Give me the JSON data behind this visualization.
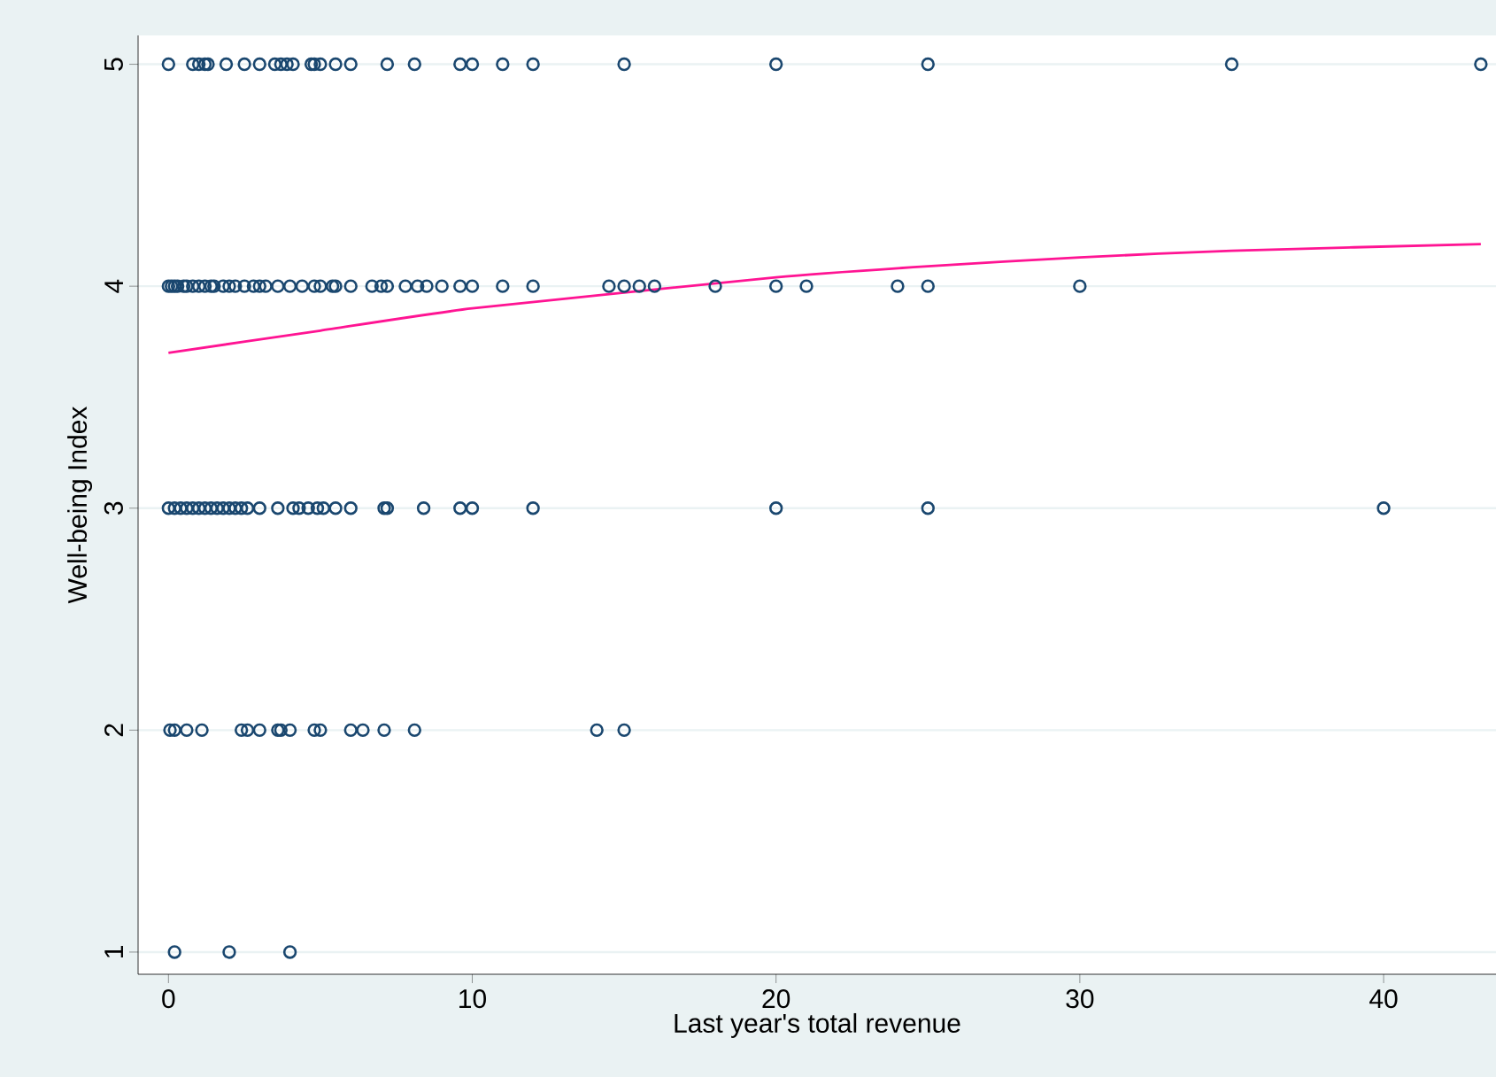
{
  "chart_data": {
    "type": "scatter",
    "xlabel": "Last year's total revenue",
    "ylabel": "Well-being Index",
    "xlim": [
      -1,
      43.7
    ],
    "ylim": [
      0.9,
      5.13
    ],
    "xticks": [
      0,
      10,
      20,
      30,
      40
    ],
    "yticks": [
      1,
      2,
      3,
      4,
      5
    ],
    "grid": "y",
    "marker": "circle",
    "series": [
      {
        "type": "scatter",
        "color": "#1a476f",
        "x": [
          0,
          0.8,
          1,
          1.2,
          1.3,
          1.9,
          2.5,
          3,
          3.5,
          3.7,
          3.9,
          4.1,
          4.7,
          4.8,
          5,
          5.5,
          6,
          7.2,
          8.1,
          9.6,
          10,
          11,
          12,
          15,
          20,
          25,
          35,
          43.2,
          0,
          0.1,
          0.2,
          0.3,
          0.5,
          0.6,
          0.8,
          1,
          1.2,
          1.4,
          1.5,
          1.8,
          2,
          2.2,
          2.5,
          2.8,
          3,
          3.2,
          3.6,
          4,
          4.4,
          4.8,
          5,
          5.4,
          5.5,
          6,
          6.7,
          7,
          7.2,
          7.8,
          8.2,
          8.5,
          9,
          9.6,
          10,
          11,
          12,
          14.5,
          15,
          15.5,
          16,
          18,
          20,
          21,
          24,
          25,
          30,
          0,
          0.2,
          0.4,
          0.6,
          0.8,
          1,
          1.2,
          1.4,
          1.6,
          1.8,
          2,
          2.2,
          2.4,
          2.6,
          3,
          3.6,
          4.1,
          4.3,
          4.6,
          4.9,
          5.1,
          5.5,
          6,
          7.1,
          7.2,
          8.4,
          9.6,
          10,
          12,
          20,
          25,
          40,
          0.05,
          0.2,
          0.6,
          1.1,
          2.4,
          2.6,
          3,
          3.6,
          3.7,
          4,
          4.8,
          5,
          6,
          6.4,
          7.1,
          8.1,
          14.1,
          15,
          0.2,
          2,
          4
        ],
        "values": [
          5,
          5,
          5,
          5,
          5,
          5,
          5,
          5,
          5,
          5,
          5,
          5,
          5,
          5,
          5,
          5,
          5,
          5,
          5,
          5,
          5,
          5,
          5,
          5,
          5,
          5,
          5,
          5,
          4,
          4,
          4,
          4,
          4,
          4,
          4,
          4,
          4,
          4,
          4,
          4,
          4,
          4,
          4,
          4,
          4,
          4,
          4,
          4,
          4,
          4,
          4,
          4,
          4,
          4,
          4,
          4,
          4,
          4,
          4,
          4,
          4,
          4,
          4,
          4,
          4,
          4,
          4,
          4,
          4,
          4,
          4,
          4,
          4,
          4,
          4,
          3,
          3,
          3,
          3,
          3,
          3,
          3,
          3,
          3,
          3,
          3,
          3,
          3,
          3,
          3,
          3,
          3,
          3,
          3,
          3,
          3,
          3,
          3,
          3,
          3,
          3,
          3,
          3,
          3,
          3,
          3,
          3,
          2,
          2,
          2,
          2,
          2,
          2,
          2,
          2,
          2,
          2,
          2,
          2,
          2,
          2,
          2,
          2,
          2,
          2,
          1,
          1,
          1
        ]
      },
      {
        "type": "line",
        "color": "#ff1493",
        "marker": "none",
        "x": [
          0,
          5,
          10,
          20,
          25,
          30,
          35,
          43.2
        ],
        "values": [
          3.7,
          3.8,
          3.9,
          4.04,
          4.09,
          4.13,
          4.16,
          4.19
        ]
      }
    ]
  }
}
